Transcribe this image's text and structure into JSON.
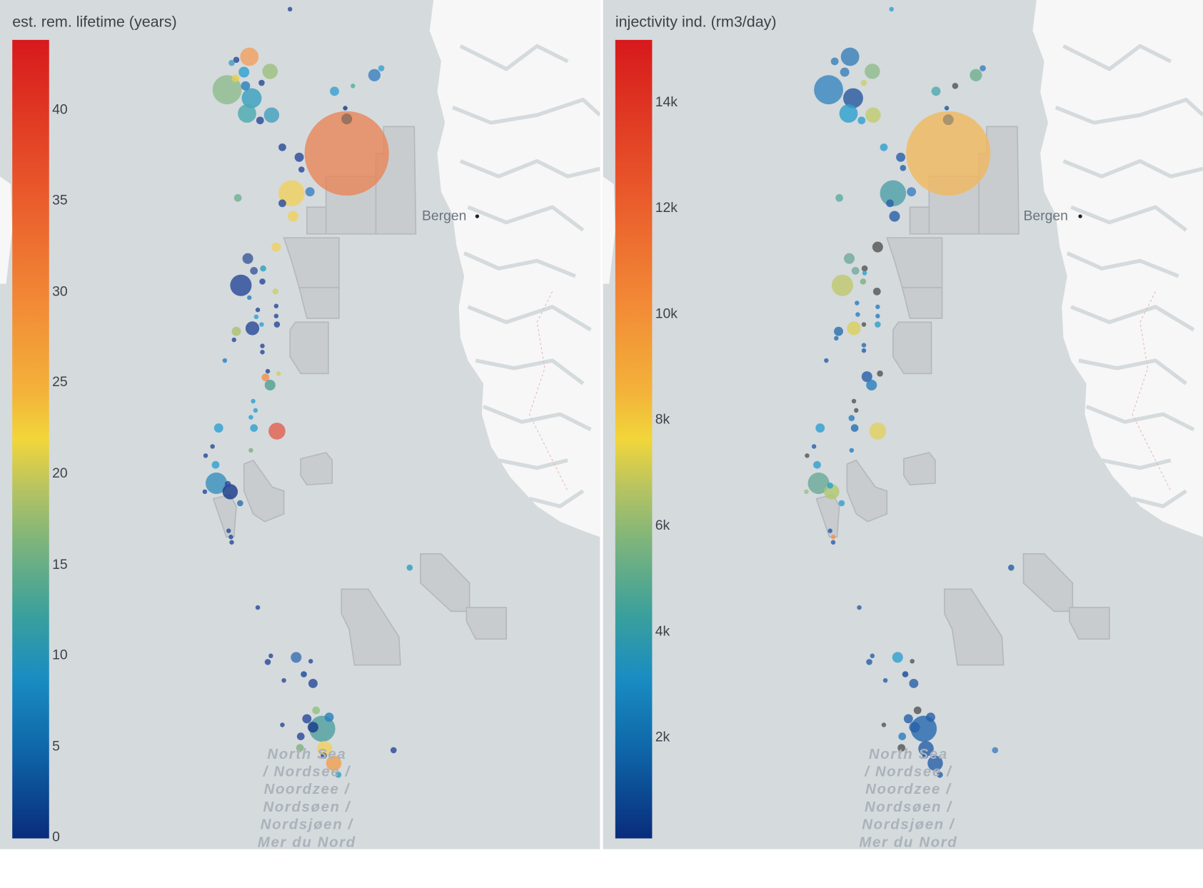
{
  "panels": [
    {
      "title": "est. rem. lifetime (years)",
      "ticks": [
        "40",
        "35",
        "30",
        "25",
        "20",
        "15",
        "10",
        "5",
        "0"
      ],
      "city": "Bergen",
      "sea_label": [
        "North Sea",
        "/ Nordsee /",
        "Noordzee /",
        "Nordsøen /",
        "Nordsjøen /",
        "Mer du Nord"
      ]
    },
    {
      "title": "injectivity ind. (rm3/day)",
      "ticks": [
        "14k",
        "12k",
        "10k",
        "8k",
        "6k",
        "4k",
        "2k"
      ],
      "city": "Bergen",
      "sea_label": [
        "North Sea",
        "/ Nordsee /",
        "Noordzee /",
        "Nordsøen /",
        "Nordsjøen /",
        "Mer du Nord"
      ]
    }
  ],
  "colors": {
    "map_bg": "#d5dadd",
    "land": "#f7f7f7",
    "blocks": "#c8cccf"
  }
}
